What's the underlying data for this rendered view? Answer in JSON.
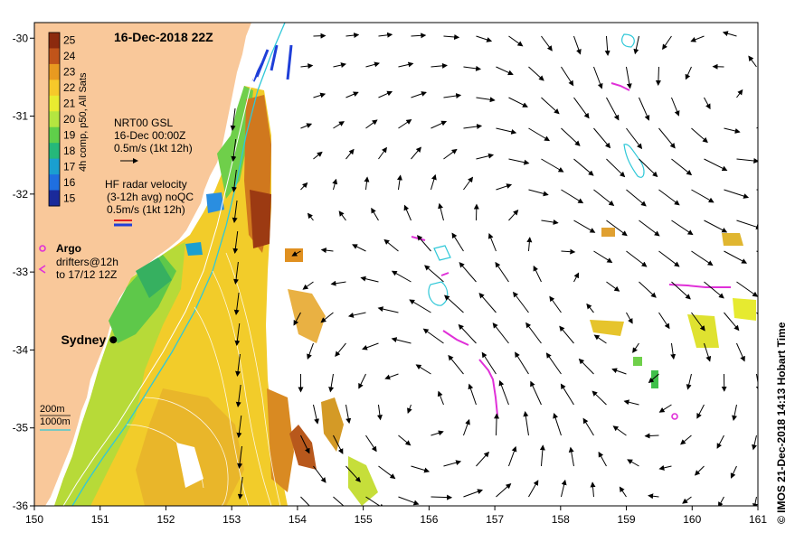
{
  "map": {
    "title": "16-Dec-2018 22Z",
    "credit": "© IMOS 21-Dec-2018 14:13 Hobart Time",
    "x_ticks": [
      "150",
      "151",
      "152",
      "153",
      "154",
      "155",
      "156",
      "157",
      "158",
      "159",
      "160",
      "161"
    ],
    "y_ticks": [
      "-30",
      "-31",
      "-32",
      "-33",
      "-34",
      "-35",
      "-36"
    ],
    "lon_range": [
      150,
      161
    ],
    "lat_range": [
      -36,
      -29.8
    ],
    "land_color": "#f9c89a",
    "city": {
      "name": "Sydney",
      "lon": 151.2,
      "lat": -33.87
    }
  },
  "colorbar": {
    "label": "4h comp, p50, All Sats",
    "ticks": [
      "25",
      "24",
      "23",
      "22",
      "21",
      "20",
      "19",
      "18",
      "17",
      "16",
      "15"
    ],
    "colors": [
      "#8c2a0e",
      "#c0541a",
      "#e89a20",
      "#f6c92a",
      "#e8ec30",
      "#b4e640",
      "#5fcf4a",
      "#25b87a",
      "#1a9fd0",
      "#1f6fe0",
      "#1a2a9a"
    ]
  },
  "legend": {
    "gsl_title": "NRT00 GSL",
    "gsl_date": "16-Dec 00:00Z",
    "gsl_scale": "0.5m/s (1kt 12h)",
    "radar_title": "HF radar velocity",
    "radar_avg": "(3-12h avg) noQC",
    "radar_scale": "0.5m/s (1kt 12h)",
    "argo_label": "Argo",
    "drifters_label": "drifters@12h",
    "drifters_period": "to 17/12 12Z",
    "isobath_200": "200m",
    "isobath_1000": "1000m"
  }
}
